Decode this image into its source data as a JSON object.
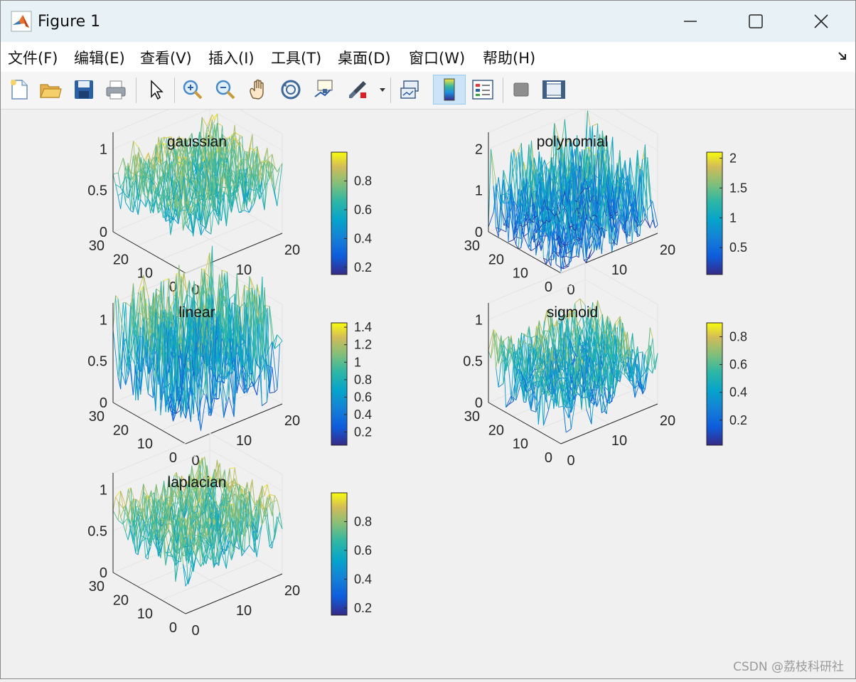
{
  "window": {
    "title": "Figure 1",
    "controls": {
      "minimize": "minimize",
      "maximize": "maximize",
      "close": "close"
    }
  },
  "menubar": {
    "items": [
      {
        "label": "文件(F)"
      },
      {
        "label": "编辑(E)"
      },
      {
        "label": "查看(V)"
      },
      {
        "label": "插入(I)"
      },
      {
        "label": "工具(T)"
      },
      {
        "label": "桌面(D)"
      },
      {
        "label": "窗口(W)"
      },
      {
        "label": "帮助(H)"
      }
    ]
  },
  "toolbar": {
    "buttons": [
      {
        "icon": "new-file-icon"
      },
      {
        "icon": "open-folder-icon"
      },
      {
        "icon": "save-icon"
      },
      {
        "icon": "print-icon"
      },
      {
        "icon": "pointer-icon"
      },
      {
        "icon": "zoom-in-icon"
      },
      {
        "icon": "zoom-out-icon"
      },
      {
        "icon": "pan-hand-icon"
      },
      {
        "icon": "rotate-3d-icon"
      },
      {
        "icon": "data-cursor-icon"
      },
      {
        "icon": "brush-icon"
      },
      {
        "icon": "link-plot-icon"
      },
      {
        "icon": "colorbar-icon",
        "active": true
      },
      {
        "icon": "legend-icon"
      },
      {
        "icon": "hide-plot-tools-icon"
      },
      {
        "icon": "show-plot-tools-icon"
      }
    ]
  },
  "chart_data": [
    {
      "type": "surface-3d",
      "title": "gaussian",
      "zticks": [
        "0",
        "0.5",
        "1"
      ],
      "xticks": [
        "0",
        "10",
        "20"
      ],
      "yticks": [
        "0",
        "10",
        "20",
        "30"
      ],
      "colorbar": {
        "ticks": [
          "0.2",
          "0.4",
          "0.6",
          "0.8"
        ],
        "range": [
          0.15,
          1.0
        ]
      },
      "z_range": [
        0.3,
        1.0
      ],
      "grid": [
        20,
        30
      ]
    },
    {
      "type": "surface-3d",
      "title": "polynomial",
      "zticks": [
        "0",
        "1",
        "2"
      ],
      "xticks": [
        "0",
        "10",
        "20"
      ],
      "yticks": [
        "0",
        "10",
        "20",
        "30"
      ],
      "colorbar": {
        "ticks": [
          "0.5",
          "1",
          "1.5",
          "2"
        ],
        "range": [
          0.05,
          2.1
        ]
      },
      "z_range": [
        0.0,
        2.1
      ],
      "grid": [
        20,
        30
      ]
    },
    {
      "type": "surface-3d",
      "title": "linear",
      "zticks": [
        "0",
        "0.5",
        "1"
      ],
      "xticks": [
        "0",
        "10",
        "20"
      ],
      "yticks": [
        "0",
        "10",
        "20",
        "30"
      ],
      "colorbar": {
        "ticks": [
          "0.2",
          "0.4",
          "0.6",
          "0.8",
          "1",
          "1.2",
          "1.4"
        ],
        "range": [
          0.05,
          1.45
        ]
      },
      "z_range": [
        0.05,
        1.45
      ],
      "grid": [
        20,
        30
      ]
    },
    {
      "type": "surface-3d",
      "title": "sigmoid",
      "zticks": [
        "0",
        "0.5",
        "1"
      ],
      "xticks": [
        "0",
        "10",
        "20"
      ],
      "yticks": [
        "0",
        "10",
        "20",
        "30"
      ],
      "colorbar": {
        "ticks": [
          "0.2",
          "0.4",
          "0.6",
          "0.8"
        ],
        "range": [
          0.02,
          0.9
        ]
      },
      "z_range": [
        0.05,
        0.9
      ],
      "grid": [
        20,
        30
      ]
    },
    {
      "type": "surface-3d",
      "title": "laplacian",
      "zticks": [
        "0",
        "0.5",
        "1"
      ],
      "xticks": [
        "0",
        "10",
        "20"
      ],
      "yticks": [
        "0",
        "10",
        "20",
        "30"
      ],
      "colorbar": {
        "ticks": [
          "0.2",
          "0.4",
          "0.6",
          "0.8"
        ],
        "range": [
          0.15,
          1.0
        ]
      },
      "z_range": [
        0.3,
        1.0
      ],
      "grid": [
        20,
        30
      ]
    }
  ],
  "watermark": "CSDN @荔枝科研社"
}
